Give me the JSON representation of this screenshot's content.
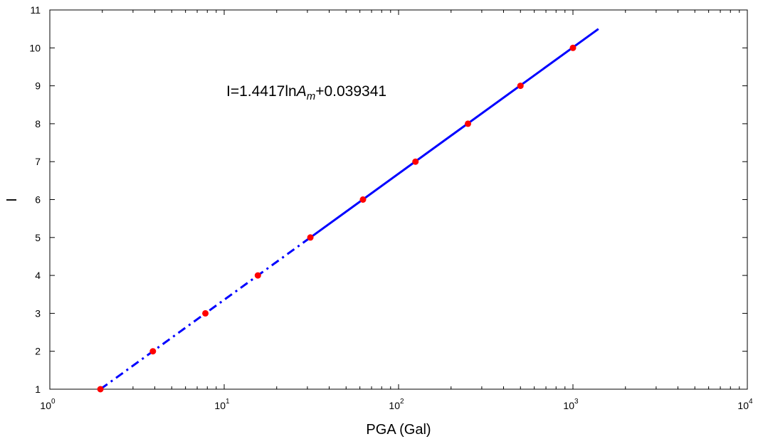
{
  "chart_data": {
    "type": "line",
    "title": "",
    "xlabel": "PGA (Gal)",
    "ylabel": "I",
    "xscale": "log",
    "xlim": [
      1,
      10000
    ],
    "ylim": [
      1,
      11
    ],
    "grid": false,
    "x_tick_labels": [
      {
        "base": "10",
        "exp": "0"
      },
      {
        "base": "10",
        "exp": "1"
      },
      {
        "base": "10",
        "exp": "2"
      },
      {
        "base": "10",
        "exp": "3"
      },
      {
        "base": "10",
        "exp": "4"
      }
    ],
    "x_ticks": [
      1,
      10,
      100,
      1000,
      10000
    ],
    "y_ticks": [
      1,
      2,
      3,
      4,
      5,
      6,
      7,
      8,
      9,
      10,
      11
    ],
    "y_tick_labels": [
      "1",
      "2",
      "3",
      "4",
      "5",
      "6",
      "7",
      "8",
      "9",
      "10",
      "11"
    ],
    "annotation": {
      "prefix": "I=1.4417ln",
      "var": "A",
      "sub": "m",
      "suffix": "+0.039341"
    },
    "points": {
      "x": [
        1.95,
        3.9,
        7.8,
        15.6,
        31.2,
        62.5,
        125,
        250,
        500,
        1000
      ],
      "y": [
        1,
        2,
        3,
        4,
        5,
        6,
        7,
        8,
        9,
        10
      ],
      "color": "#ff0000"
    },
    "fit_lines": [
      {
        "style": "dashdot",
        "x": [
          1.95,
          31.2
        ],
        "y": [
          1,
          5
        ],
        "color": "#0000ff"
      },
      {
        "style": "solid",
        "x": [
          31.2,
          1400
        ],
        "y": [
          5,
          10.5
        ],
        "color": "#0000ff"
      }
    ]
  }
}
